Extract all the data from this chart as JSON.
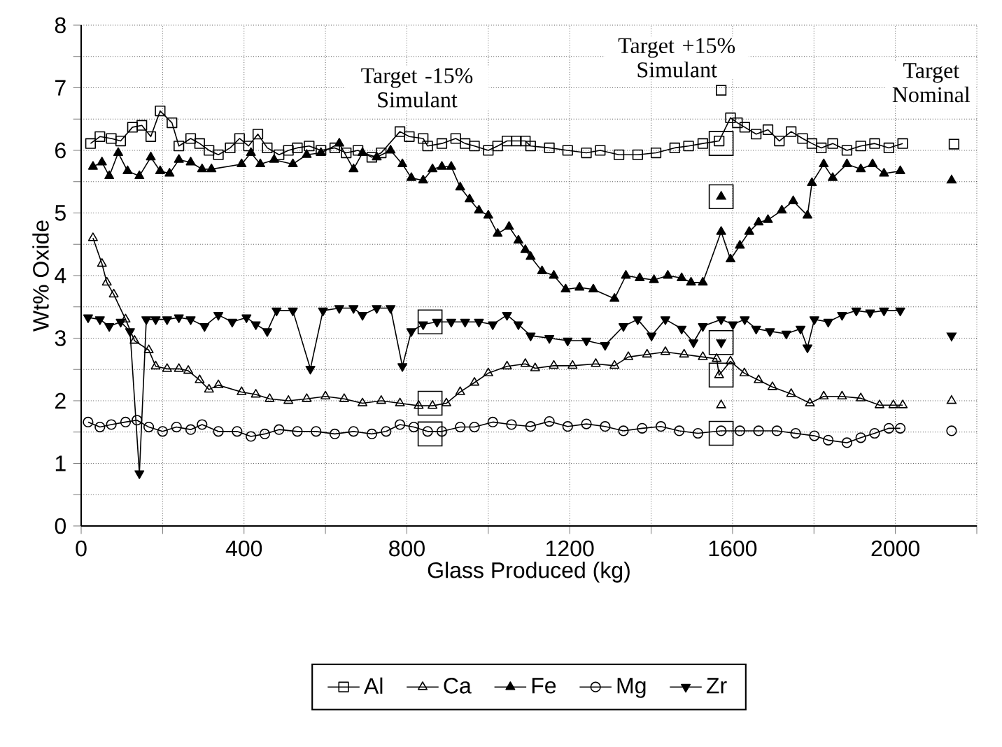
{
  "chart_data": {
    "type": "line",
    "xlabel": "Glass Produced (kg)",
    "ylabel": "Wt% Oxide",
    "xlim": [
      0,
      2200
    ],
    "ylim": [
      0,
      8
    ],
    "xticks": [
      0,
      {
        "value": 200,
        "label": null
      },
      400,
      {
        "value": 600,
        "label": null
      },
      800,
      {
        "value": 1000,
        "label": null
      },
      1200,
      {
        "value": 1400,
        "label": null
      },
      1600,
      {
        "value": 1800,
        "label": null
      },
      2000,
      {
        "value": 2200,
        "label": null
      }
    ],
    "yticks": [
      0,
      {
        "value": 0.5,
        "label": null
      },
      1,
      {
        "value": 1.5,
        "label": null
      },
      2,
      {
        "value": 2.5,
        "label": null
      },
      3,
      {
        "value": 3.5,
        "label": null
      },
      4,
      {
        "value": 4.5,
        "label": null
      },
      5,
      {
        "value": 5.5,
        "label": null
      },
      6,
      {
        "value": 6.5,
        "label": null
      },
      7,
      {
        "value": 7.5,
        "label": null
      },
      8
    ],
    "grid": true,
    "legend": "bottom",
    "line_style": "solid",
    "annotations": [
      "Target -15% Simulant",
      "Target +15% Simulant",
      "Target Nominal"
    ],
    "series": [
      {
        "name": "Al",
        "color": "#000000",
        "marker": "square",
        "x": [
          23,
          46,
          74,
          97,
          126,
          149,
          171,
          194,
          223,
          240,
          269,
          291,
          314,
          337,
          366,
          389,
          411,
          434,
          457,
          486,
          509,
          531,
          560,
          589,
          623,
          651,
          680,
          714,
          737,
          783,
          806,
          840,
          851,
          886,
          920,
          943,
          966,
          1000,
          1023,
          1046,
          1069,
          1091,
          1104,
          1150,
          1195,
          1241,
          1275,
          1321,
          1367,
          1412,
          1458,
          1492,
          1527,
          1567,
          1595,
          1612,
          1630,
          1658,
          1687,
          1715,
          1744,
          1772,
          1795,
          1818,
          1846,
          1881,
          1915,
          1949,
          1984,
          2018
        ],
        "values": [
          6.11,
          6.22,
          6.19,
          6.15,
          6.37,
          6.4,
          6.22,
          6.63,
          6.44,
          6.07,
          6.19,
          6.11,
          6.0,
          5.93,
          6.04,
          6.19,
          6.07,
          6.26,
          6.04,
          5.93,
          6.0,
          6.04,
          6.07,
          6.0,
          6.04,
          5.96,
          6.0,
          5.89,
          5.96,
          6.3,
          6.22,
          6.19,
          6.07,
          6.11,
          6.19,
          6.11,
          6.07,
          6.0,
          6.07,
          6.15,
          6.15,
          6.15,
          6.07,
          6.04,
          6.0,
          5.96,
          6.0,
          5.93,
          5.93,
          5.96,
          6.04,
          6.07,
          6.11,
          6.15,
          6.52,
          6.44,
          6.37,
          6.26,
          6.33,
          6.15,
          6.3,
          6.19,
          6.11,
          6.04,
          6.11,
          6.0,
          6.07,
          6.11,
          6.04,
          6.11
        ]
      },
      {
        "name": "Ca",
        "color": "#000000",
        "marker": "triangle",
        "x": [
          29,
          51,
          63,
          80,
          109,
          131,
          166,
          183,
          211,
          240,
          263,
          291,
          314,
          337,
          394,
          429,
          463,
          509,
          554,
          600,
          646,
          691,
          737,
          783,
          829,
          863,
          897,
          931,
          966,
          1000,
          1046,
          1091,
          1115,
          1161,
          1207,
          1264,
          1310,
          1344,
          1390,
          1435,
          1481,
          1527,
          1561,
          1567,
          1595,
          1629,
          1664,
          1698,
          1744,
          1790,
          1824,
          1869,
          1915,
          1961,
          1995,
          2018
        ],
        "values": [
          4.6,
          4.19,
          3.89,
          3.7,
          3.3,
          2.96,
          2.81,
          2.55,
          2.51,
          2.51,
          2.48,
          2.33,
          2.18,
          2.25,
          2.14,
          2.1,
          2.03,
          2.0,
          2.03,
          2.07,
          2.03,
          1.96,
          2.0,
          1.96,
          1.92,
          1.92,
          1.96,
          2.14,
          2.29,
          2.44,
          2.55,
          2.59,
          2.52,
          2.56,
          2.56,
          2.59,
          2.56,
          2.7,
          2.74,
          2.78,
          2.74,
          2.7,
          2.67,
          2.41,
          2.63,
          2.44,
          2.33,
          2.22,
          2.11,
          1.96,
          2.07,
          2.07,
          2.04,
          1.93,
          1.93,
          1.93
        ]
      },
      {
        "name": "Fe",
        "color": "#000000",
        "marker": "triangle-filled",
        "x": [
          29,
          51,
          69,
          91,
          114,
          143,
          171,
          194,
          217,
          240,
          269,
          297,
          320,
          394,
          417,
          440,
          474,
          520,
          554,
          589,
          634,
          669,
          691,
          726,
          760,
          789,
          811,
          840,
          863,
          886,
          909,
          931,
          954,
          977,
          1000,
          1023,
          1051,
          1074,
          1091,
          1104,
          1132,
          1161,
          1190,
          1224,
          1258,
          1310,
          1338,
          1372,
          1407,
          1441,
          1475,
          1498,
          1527,
          1572,
          1595,
          1618,
          1641,
          1664,
          1687,
          1721,
          1749,
          1784,
          1795,
          1824,
          1846,
          1881,
          1915,
          1944,
          1972,
          2012
        ],
        "values": [
          5.74,
          5.81,
          5.59,
          5.96,
          5.67,
          5.59,
          5.89,
          5.67,
          5.63,
          5.85,
          5.81,
          5.7,
          5.7,
          5.78,
          5.96,
          5.78,
          5.85,
          5.78,
          5.93,
          5.96,
          6.11,
          5.7,
          5.96,
          5.89,
          6.0,
          5.78,
          5.56,
          5.52,
          5.7,
          5.74,
          5.74,
          5.41,
          5.22,
          5.04,
          4.96,
          4.67,
          4.78,
          4.56,
          4.41,
          4.3,
          4.07,
          4.0,
          3.78,
          3.81,
          3.78,
          3.63,
          4.0,
          3.96,
          3.93,
          4.0,
          3.96,
          3.89,
          3.89,
          4.7,
          4.26,
          4.48,
          4.7,
          4.85,
          4.89,
          5.04,
          5.19,
          4.96,
          5.48,
          5.78,
          5.56,
          5.78,
          5.7,
          5.78,
          5.63,
          5.67
        ]
      },
      {
        "name": "Mg",
        "color": "#000000",
        "marker": "circle",
        "x": [
          17,
          46,
          74,
          109,
          137,
          166,
          200,
          234,
          269,
          297,
          337,
          383,
          417,
          451,
          486,
          531,
          577,
          623,
          669,
          714,
          749,
          783,
          817,
          851,
          886,
          931,
          966,
          1011,
          1057,
          1104,
          1150,
          1195,
          1241,
          1287,
          1332,
          1378,
          1424,
          1469,
          1515,
          1572,
          1618,
          1664,
          1709,
          1755,
          1801,
          1835,
          1881,
          1915,
          1949,
          1984,
          2012
        ],
        "values": [
          1.66,
          1.58,
          1.62,
          1.66,
          1.69,
          1.58,
          1.51,
          1.58,
          1.54,
          1.62,
          1.51,
          1.51,
          1.43,
          1.47,
          1.54,
          1.51,
          1.51,
          1.47,
          1.51,
          1.47,
          1.51,
          1.62,
          1.58,
          1.51,
          1.51,
          1.58,
          1.58,
          1.66,
          1.62,
          1.59,
          1.67,
          1.59,
          1.63,
          1.59,
          1.52,
          1.56,
          1.59,
          1.52,
          1.48,
          1.52,
          1.52,
          1.52,
          1.52,
          1.48,
          1.44,
          1.37,
          1.33,
          1.41,
          1.48,
          1.56,
          1.56
        ]
      },
      {
        "name": "Zr",
        "color": "#000000",
        "marker": "triangle-down-filled",
        "x": [
          17,
          46,
          69,
          97,
          120,
          143,
          160,
          183,
          211,
          240,
          269,
          303,
          337,
          371,
          406,
          429,
          457,
          480,
          520,
          563,
          594,
          634,
          669,
          691,
          726,
          760,
          789,
          811,
          840,
          874,
          909,
          943,
          977,
          1011,
          1046,
          1074,
          1104,
          1150,
          1195,
          1241,
          1287,
          1332,
          1367,
          1401,
          1435,
          1475,
          1504,
          1527,
          1572,
          1601,
          1630,
          1658,
          1692,
          1732,
          1767,
          1784,
          1801,
          1835,
          1869,
          1904,
          1938,
          1972,
          2012
        ],
        "values": [
          3.33,
          3.3,
          3.19,
          3.26,
          3.11,
          0.84,
          3.3,
          3.3,
          3.3,
          3.33,
          3.3,
          3.19,
          3.37,
          3.26,
          3.33,
          3.22,
          3.11,
          3.44,
          3.44,
          2.51,
          3.44,
          3.48,
          3.48,
          3.37,
          3.48,
          3.48,
          2.55,
          3.11,
          3.22,
          3.26,
          3.26,
          3.26,
          3.26,
          3.22,
          3.37,
          3.22,
          3.04,
          3.0,
          2.96,
          2.96,
          2.89,
          3.19,
          3.3,
          3.04,
          3.3,
          3.15,
          2.93,
          3.19,
          3.3,
          3.22,
          3.3,
          3.15,
          3.11,
          3.07,
          3.15,
          2.85,
          3.3,
          3.26,
          3.37,
          3.44,
          3.41,
          3.44,
          3.44
        ]
      },
      {
        "type": "scatter",
        "color": "#000000",
        "marker": "square",
        "x": [
          2144,
          1572
        ],
        "values": [
          6.1,
          6.96
        ]
      },
      {
        "type": "scatter",
        "color": "#000000",
        "marker": "triangle",
        "x": [
          2138,
          1572
        ],
        "values": [
          2.0,
          1.93
        ]
      },
      {
        "type": "scatter",
        "color": "#000000",
        "marker": "triangle-filled",
        "x": [
          2138,
          1572
        ],
        "values": [
          5.52,
          5.26
        ]
      },
      {
        "type": "scatter",
        "color": "#000000",
        "marker": "circle",
        "x": [
          2138
        ],
        "values": [
          1.52
        ]
      },
      {
        "type": "scatter",
        "color": "#000000",
        "marker": "triangle-down-filled",
        "x": [
          2138,
          1572
        ],
        "values": [
          3.04,
          2.93
        ]
      },
      {
        "type": "scatter",
        "color": "#000000",
        "marker": "square-large",
        "x": [
          857,
          857,
          857,
          1572,
          1572,
          1572,
          1572,
          1572
        ],
        "values": [
          3.26,
          1.96,
          1.47,
          6.11,
          5.26,
          2.93,
          2.41,
          1.48
        ]
      }
    ]
  }
}
